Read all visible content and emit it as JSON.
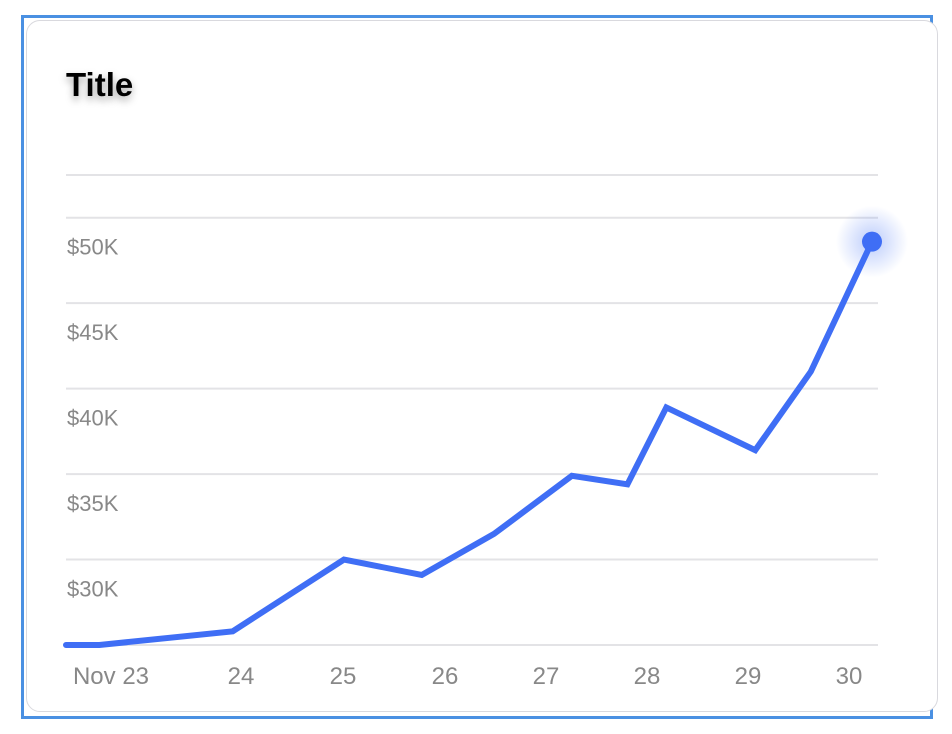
{
  "chart_data": {
    "type": "line",
    "title": "Title",
    "xlabel": "",
    "ylabel": "",
    "x_tick_labels": [
      "Nov 23",
      "24",
      "25",
      "26",
      "27",
      "28",
      "29",
      "30"
    ],
    "y_tick_labels": [
      "$30K",
      "$35K",
      "$40K",
      "$45K",
      "$50K"
    ],
    "y_ticks": [
      30000,
      35000,
      40000,
      45000,
      50000
    ],
    "ylim": [
      25000,
      52500
    ],
    "xlim": [
      0,
      7.25
    ],
    "grid": true,
    "color": "#3f6ef5",
    "series": [
      {
        "x": [
          0,
          0.3,
          1.5,
          2.5,
          3.2,
          3.85,
          4.55,
          5.05,
          5.4,
          6.2,
          6.7,
          7.25
        ],
        "values": [
          25000,
          25000,
          25800,
          30000,
          29100,
          31500,
          34900,
          34400,
          38900,
          36400,
          41000,
          48600
        ]
      }
    ]
  }
}
